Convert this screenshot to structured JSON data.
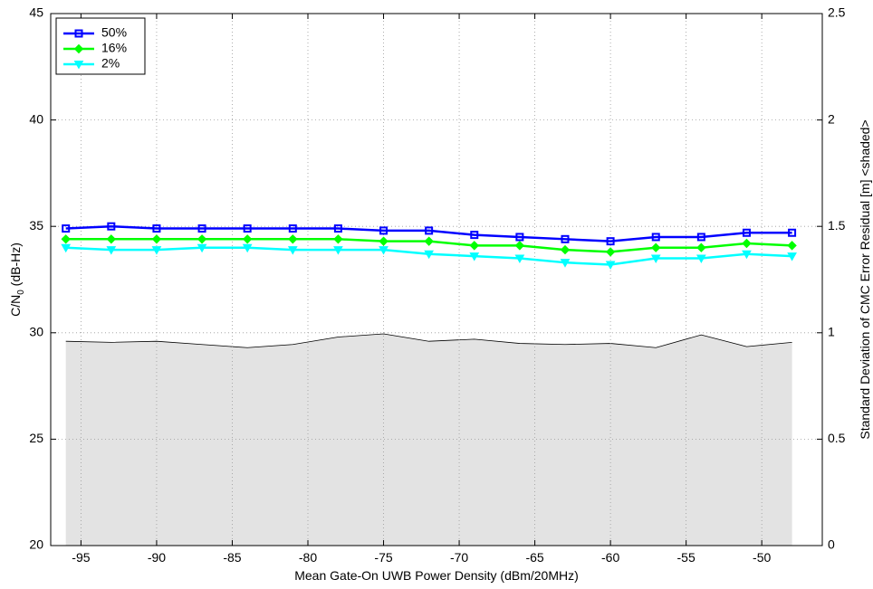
{
  "chart_data": {
    "type": "line",
    "xlabel": "Mean Gate-On UWB Power Density (dBm/20MHz)",
    "ylabel_main": "C/N",
    "ylabel_sub": "0",
    "ylabel_tail": " (dB-Hz)",
    "y2label": "Standard Deviation of CMC Error Residual [m] <shaded>",
    "xlim": [
      -97,
      -46
    ],
    "ylim": [
      20,
      45
    ],
    "y2lim": [
      0,
      2.5
    ],
    "xticks": [
      -95,
      -90,
      -85,
      -80,
      -75,
      -70,
      -65,
      -60,
      -55,
      -50
    ],
    "xtick_labels": [
      "-95",
      "-90",
      "-85",
      "-80",
      "-75",
      "-70",
      "-65",
      "-60",
      "-55",
      "-50"
    ],
    "yticks": [
      20,
      25,
      30,
      35,
      40,
      45
    ],
    "ytick_labels": [
      "20",
      "25",
      "30",
      "35",
      "40",
      "45"
    ],
    "y2ticks": [
      0,
      0.5,
      1,
      1.5,
      2,
      2.5
    ],
    "y2tick_labels": [
      "0",
      "0.5",
      "1",
      "1.5",
      "2",
      "2.5"
    ],
    "grid": true,
    "legend_position": "top-left",
    "x": [
      -96,
      -93,
      -90,
      -87,
      -84,
      -81,
      -78,
      -75,
      -72,
      -69,
      -66,
      -63,
      -60,
      -57,
      -54,
      -51,
      -48
    ],
    "series": [
      {
        "name": "50%",
        "color": "#0000ff",
        "marker": "square",
        "values": [
          34.9,
          35.0,
          34.9,
          34.9,
          34.9,
          34.9,
          34.9,
          34.8,
          34.8,
          34.6,
          34.5,
          34.4,
          34.3,
          34.5,
          34.5,
          34.7,
          34.7
        ]
      },
      {
        "name": "16%",
        "color": "#00ff00",
        "marker": "diamond",
        "values": [
          34.4,
          34.4,
          34.4,
          34.4,
          34.4,
          34.4,
          34.4,
          34.3,
          34.3,
          34.1,
          34.1,
          33.9,
          33.8,
          34.0,
          34.0,
          34.2,
          34.1
        ]
      },
      {
        "name": "2%",
        "color": "#00ffff",
        "marker": "triangle-down",
        "values": [
          34.0,
          33.9,
          33.9,
          34.0,
          34.0,
          33.9,
          33.9,
          33.9,
          33.7,
          33.6,
          33.5,
          33.3,
          33.2,
          33.5,
          33.5,
          33.7,
          33.6
        ]
      }
    ],
    "shaded": {
      "axis": "right",
      "color": "#e3e3e3",
      "x": [
        -96,
        -93,
        -90,
        -87,
        -84,
        -81,
        -78,
        -75,
        -72,
        -69,
        -66,
        -63,
        -60,
        -57,
        -54,
        -51,
        -48
      ],
      "values": [
        0.96,
        0.955,
        0.96,
        0.945,
        0.93,
        0.945,
        0.98,
        0.995,
        0.96,
        0.97,
        0.95,
        0.945,
        0.95,
        0.93,
        0.99,
        0.935,
        0.955
      ]
    }
  }
}
